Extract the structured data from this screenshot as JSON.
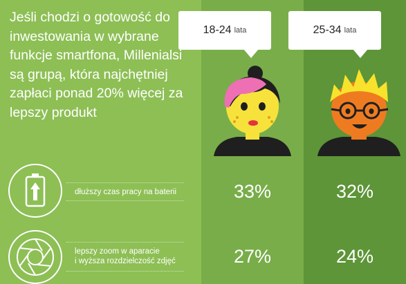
{
  "headline": "Jeśli chodzi o gotowość do inwestowania w wybrane funkcje smartfona, Millenialsi są grupą, która najchętniej zapłaci ponad 20% więcej za lepszy produkt",
  "chart_data": {
    "type": "table",
    "columns": [
      {
        "label": "18-24",
        "unit": "lata"
      },
      {
        "label": "25-34",
        "unit": "lata"
      }
    ],
    "rows": [
      {
        "icon": "battery-icon",
        "label": "dłuższy czas pracy na baterii",
        "values": [
          "33%",
          "32%"
        ]
      },
      {
        "icon": "camera-lens-icon",
        "label": "lepszy zoom w aparacie\ni wyższa rozdzielczość zdjęć",
        "values": [
          "27%",
          "24%"
        ]
      }
    ]
  },
  "colors": {
    "background": "#8dbf55",
    "column_a": "#79ad49",
    "column_b": "#5d9538",
    "text": "#ffffff"
  }
}
